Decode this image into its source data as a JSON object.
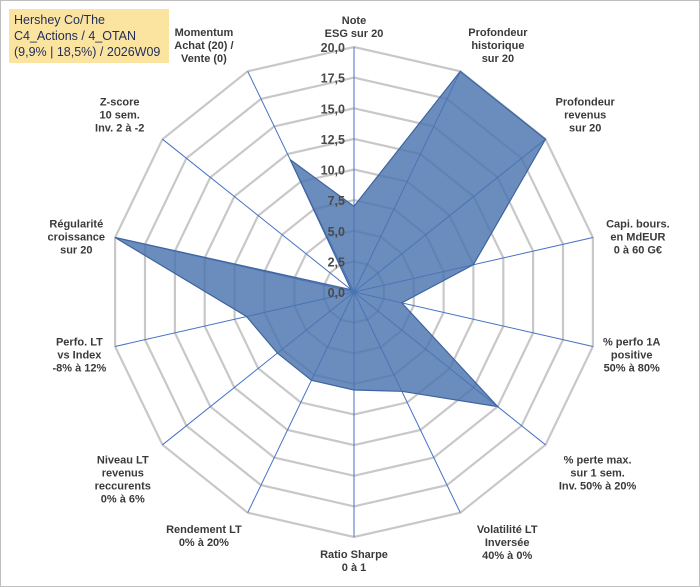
{
  "title": {
    "line1": "Hershey Co/The",
    "line2": "C4_Actions / 4_OTAN",
    "line3": "(9,9% | 18,5%) / 2026W09"
  },
  "colors": {
    "fill": "#4a74b0",
    "stroke": "#3e64a0",
    "grid": "#c8c8c8",
    "spoke": "#4472c4",
    "title_bg": "#fbe3a0"
  },
  "chart_data": {
    "type": "radar",
    "rmin": 0,
    "rmax": 20,
    "ticks": [
      "0,0",
      "2,5",
      "5,0",
      "7,5",
      "10,0",
      "12,5",
      "15,0",
      "17,5",
      "20,0"
    ],
    "tick_values": [
      0,
      2.5,
      5,
      7.5,
      10,
      12.5,
      15,
      17.5,
      20
    ],
    "axes": [
      {
        "label": [
          "Note",
          "ESG sur 20"
        ],
        "value": 7
      },
      {
        "label": [
          "Profondeur",
          "historique",
          "sur 20"
        ],
        "value": 20
      },
      {
        "label": [
          "Profondeur",
          "revenus",
          "sur 20"
        ],
        "value": 20
      },
      {
        "label": [
          "Capi. bours.",
          "en MdEUR",
          "0 à 60 G€"
        ],
        "value": 10
      },
      {
        "label": [
          "% perfo 1A",
          "positive",
          "50% à 80%"
        ],
        "value": 4
      },
      {
        "label": [
          "% perte max.",
          "sur 1 sem.",
          "Inv. 50% à 20%"
        ],
        "value": 15
      },
      {
        "label": [
          "Volatilité LT",
          "Inversée",
          "40% à 0%"
        ],
        "value": 9
      },
      {
        "label": [
          "Ratio Sharpe",
          "0 à 1"
        ],
        "value": 8
      },
      {
        "label": [
          "Rendement LT",
          "0% à 20%"
        ],
        "value": 8
      },
      {
        "label": [
          "Niveau LT",
          "revenus",
          "reccurents",
          "0% à 6%"
        ],
        "value": 8
      },
      {
        "label": [
          "Perfo. LT",
          "vs Index",
          "-8% à 12%"
        ],
        "value": 9
      },
      {
        "label": [
          "Régularité",
          "croissance",
          "sur 20"
        ],
        "value": 20
      },
      {
        "label": [
          "Z-score",
          "10 sem.",
          "Inv. 2 à -2"
        ],
        "value": 0.3
      },
      {
        "label": [
          "Momentum",
          "Achat (20) /",
          "Vente (0)"
        ],
        "value": 12
      }
    ]
  }
}
